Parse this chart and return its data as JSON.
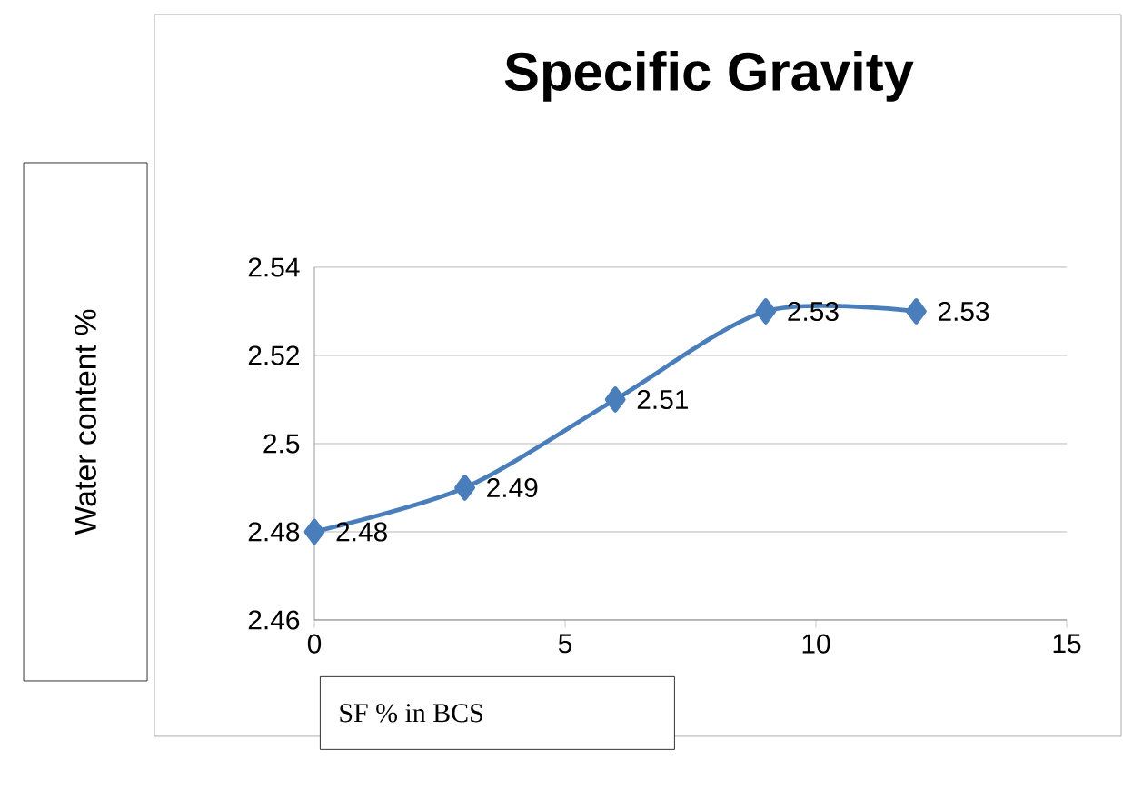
{
  "chart_data": {
    "type": "line",
    "title": "Specific Gravity",
    "xlabel": "SF %  in BCS",
    "ylabel": "Water content %",
    "x": [
      0,
      3,
      6,
      9,
      12
    ],
    "series": [
      {
        "color": "#4a7ebb",
        "values": [
          2.48,
          2.49,
          2.51,
          2.53,
          2.53
        ]
      }
    ],
    "xlim": [
      0,
      15
    ],
    "xticks": [
      0,
      5,
      10,
      15
    ],
    "ylim": [
      2.46,
      2.54
    ],
    "yticks": [
      2.46,
      2.48,
      2.5,
      2.52,
      2.54
    ],
    "grid": "y",
    "marker": "diamond",
    "line_style": "solid",
    "data_labels": true
  }
}
